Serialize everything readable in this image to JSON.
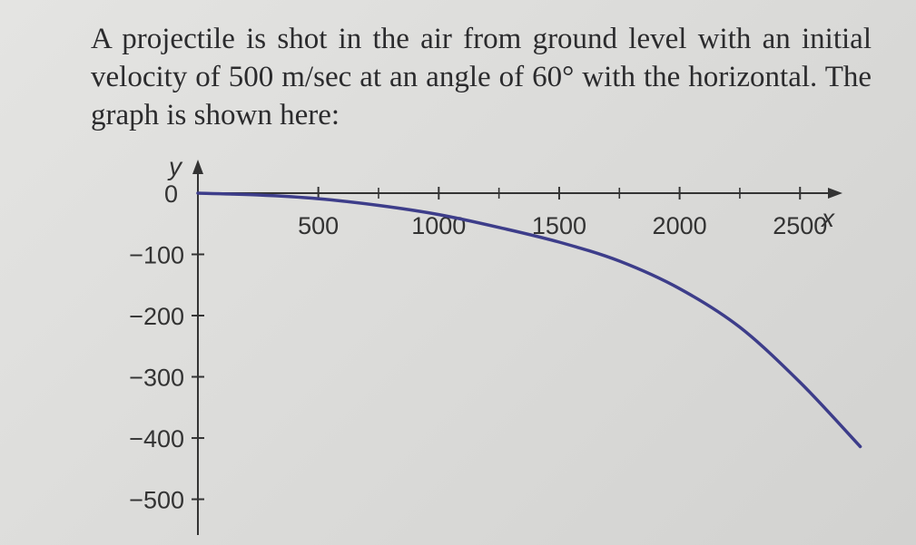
{
  "problem": {
    "text": "A projectile is shot in the air from ground level with an initial velocity of 500 m/sec at an angle of 60° with the horizontal. The graph is shown here:"
  },
  "chart_data": {
    "type": "line",
    "title": "",
    "xlabel": "x",
    "ylabel": "y",
    "xlim": [
      0,
      2600
    ],
    "ylim": [
      -500,
      0
    ],
    "x_ticks": [
      500,
      1000,
      1500,
      2000,
      2500
    ],
    "x_tick_labels": [
      "500",
      "1000",
      "1500",
      "2000",
      "2500"
    ],
    "y_ticks": [
      0,
      -100,
      -200,
      -300,
      -400,
      -500
    ],
    "y_tick_labels": [
      "0",
      "−100",
      "−200",
      "−300",
      "−400",
      "−500"
    ],
    "grid": false,
    "line_color": "#3d3d8a",
    "series": [
      {
        "name": "",
        "x": [
          0,
          250,
          500,
          750,
          1000,
          1250,
          1500,
          1750,
          2000,
          2250,
          2500,
          2750
        ],
        "y": [
          0,
          -3,
          -9,
          -20,
          -35,
          -56,
          -80,
          -111,
          -156,
          -219,
          -309,
          -414
        ]
      }
    ]
  }
}
